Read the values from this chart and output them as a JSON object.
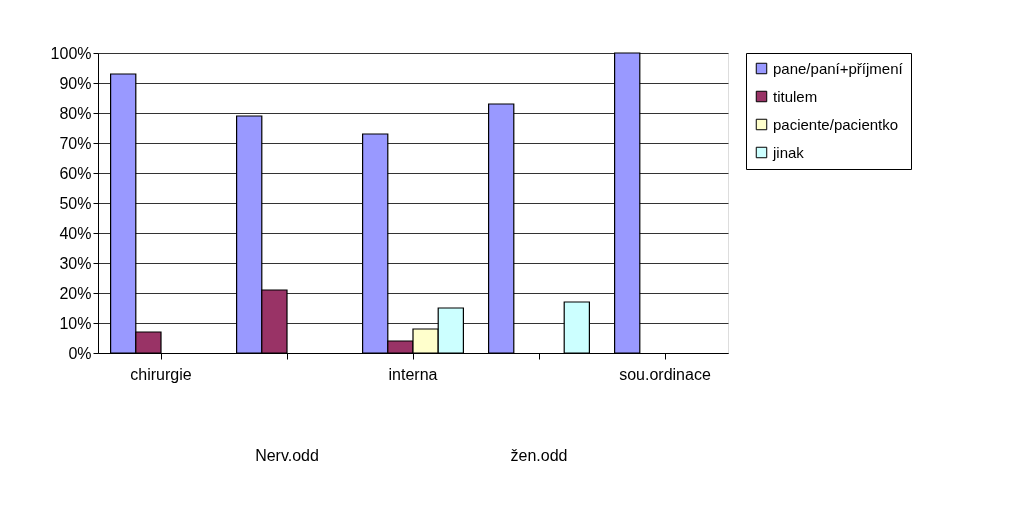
{
  "chart_data": {
    "type": "bar",
    "categories": [
      "chirurgie",
      "Nerv.odd",
      "interna",
      "žen.odd",
      "sou.ordinace"
    ],
    "series": [
      {
        "name": "pane/paní+příjmení",
        "color": "#9999ff",
        "values": [
          93,
          79,
          73,
          83,
          100
        ]
      },
      {
        "name": "titulem",
        "color": "#993366",
        "values": [
          7,
          21,
          4,
          null,
          null
        ]
      },
      {
        "name": "paciente/pacientko",
        "color": "#ffffcc",
        "values": [
          null,
          null,
          8,
          null,
          null
        ]
      },
      {
        "name": "jinak",
        "color": "#ccffff",
        "values": [
          null,
          null,
          15,
          17,
          null
        ]
      }
    ],
    "ylim": [
      0,
      100
    ],
    "yticks": [
      {
        "value": 0,
        "label": "0%"
      },
      {
        "value": 10,
        "label": "10%"
      },
      {
        "value": 20,
        "label": "20%"
      },
      {
        "value": 30,
        "label": "30%"
      },
      {
        "value": 40,
        "label": "40%"
      },
      {
        "value": 50,
        "label": "50%"
      },
      {
        "value": 60,
        "label": "60%"
      },
      {
        "value": 70,
        "label": "70%"
      },
      {
        "value": 80,
        "label": "80%"
      },
      {
        "value": 90,
        "label": "90%"
      },
      {
        "value": 100,
        "label": "100%"
      }
    ],
    "grid": "y",
    "legend": "right"
  }
}
